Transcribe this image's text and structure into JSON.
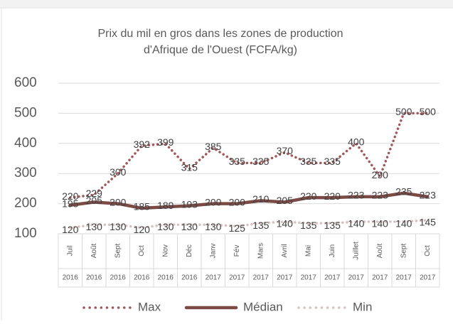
{
  "chart_data": {
    "type": "line",
    "title": [
      "Prix du mil en gros dans les zones de production",
      "d'Afrique de l'Ouest (FCFA/kg)"
    ],
    "categories": [
      "Juil",
      "Août",
      "Sept",
      "Oct",
      "Nov",
      "Déc",
      "Janv",
      "Fév",
      "Mars",
      "Avril",
      "Mai",
      "Juin",
      "Juillet",
      "Août",
      "Sept",
      "Oct"
    ],
    "years": [
      "2016",
      "2016",
      "2016",
      "2016",
      "2016",
      "2016",
      "2017",
      "2017",
      "2017",
      "2017",
      "2017",
      "2017",
      "2017",
      "2017",
      "2017",
      "2017"
    ],
    "series": [
      {
        "name": "Max",
        "color": "#a0575a",
        "style": "dotted",
        "values": [
          220,
          229,
          300,
          392,
          399,
          315,
          385,
          335,
          335,
          370,
          335,
          335,
          400,
          290,
          500,
          500
        ]
      },
      {
        "name": "Médian",
        "color": "#7b4a44",
        "style": "solid",
        "values": [
          195,
          205,
          200,
          185,
          189,
          193,
          200,
          200,
          210,
          205,
          220,
          220,
          223,
          223,
          235,
          223
        ]
      },
      {
        "name": "Min",
        "color": "#d9c0c1",
        "style": "dotted",
        "values": [
          120,
          130,
          130,
          120,
          130,
          130,
          130,
          125,
          135,
          140,
          135,
          135,
          140,
          140,
          140,
          145
        ]
      }
    ],
    "ylim": [
      100,
      600
    ],
    "yticks": [
      100,
      200,
      300,
      400,
      500,
      600
    ],
    "grid": true,
    "legend": "bottom"
  }
}
